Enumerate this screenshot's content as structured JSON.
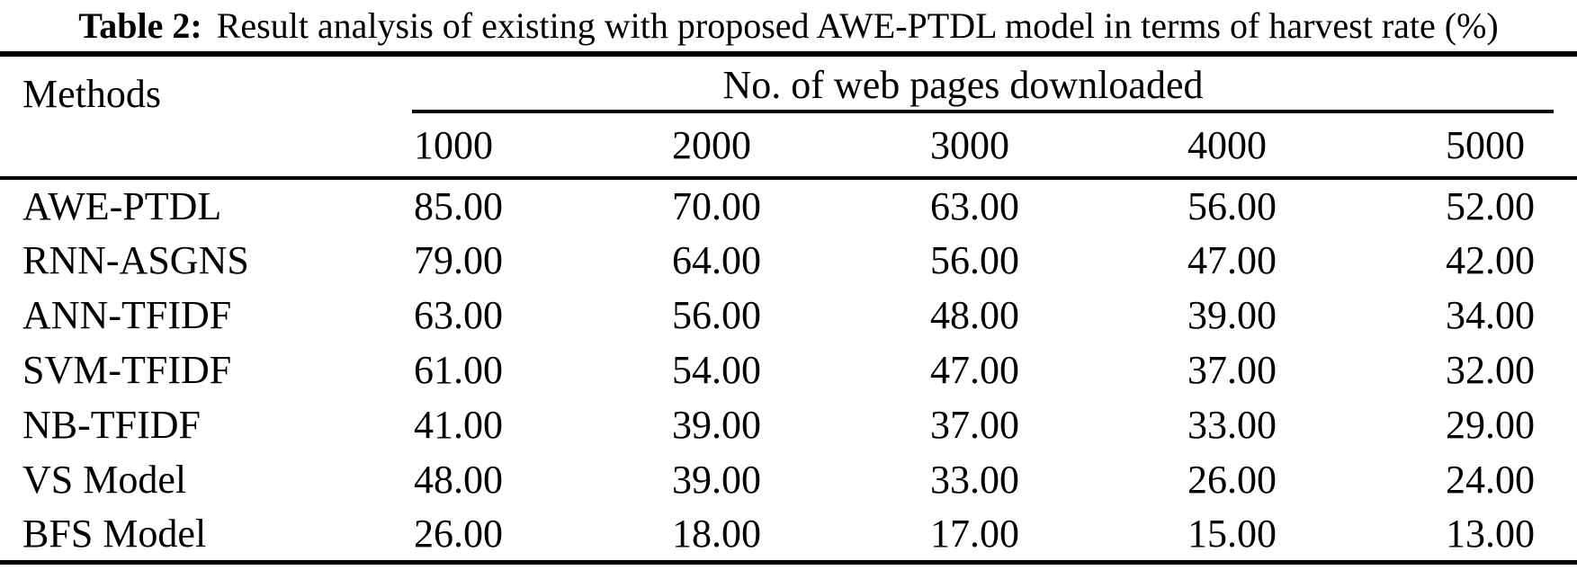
{
  "title": {
    "label": "Table 2:",
    "text": "Result analysis of existing with proposed AWE-PTDL model in terms of harvest rate (%)"
  },
  "table": {
    "methods_header": "Methods",
    "group_header": "No. of web pages downloaded",
    "columns": [
      "1000",
      "2000",
      "3000",
      "4000",
      "5000"
    ],
    "rows": [
      {
        "method": "AWE-PTDL",
        "values": [
          "85.00",
          "70.00",
          "63.00",
          "56.00",
          "52.00"
        ]
      },
      {
        "method": "RNN-ASGNS",
        "values": [
          "79.00",
          "64.00",
          "56.00",
          "47.00",
          "42.00"
        ]
      },
      {
        "method": "ANN-TFIDF",
        "values": [
          "63.00",
          "56.00",
          "48.00",
          "39.00",
          "34.00"
        ]
      },
      {
        "method": "SVM-TFIDF",
        "values": [
          "61.00",
          "54.00",
          "47.00",
          "37.00",
          "32.00"
        ]
      },
      {
        "method": "NB-TFIDF",
        "values": [
          "41.00",
          "39.00",
          "37.00",
          "33.00",
          "29.00"
        ]
      },
      {
        "method": "VS Model",
        "values": [
          "48.00",
          "39.00",
          "33.00",
          "26.00",
          "24.00"
        ]
      },
      {
        "method": "BFS Model",
        "values": [
          "26.00",
          "18.00",
          "17.00",
          "15.00",
          "13.00"
        ]
      }
    ]
  }
}
